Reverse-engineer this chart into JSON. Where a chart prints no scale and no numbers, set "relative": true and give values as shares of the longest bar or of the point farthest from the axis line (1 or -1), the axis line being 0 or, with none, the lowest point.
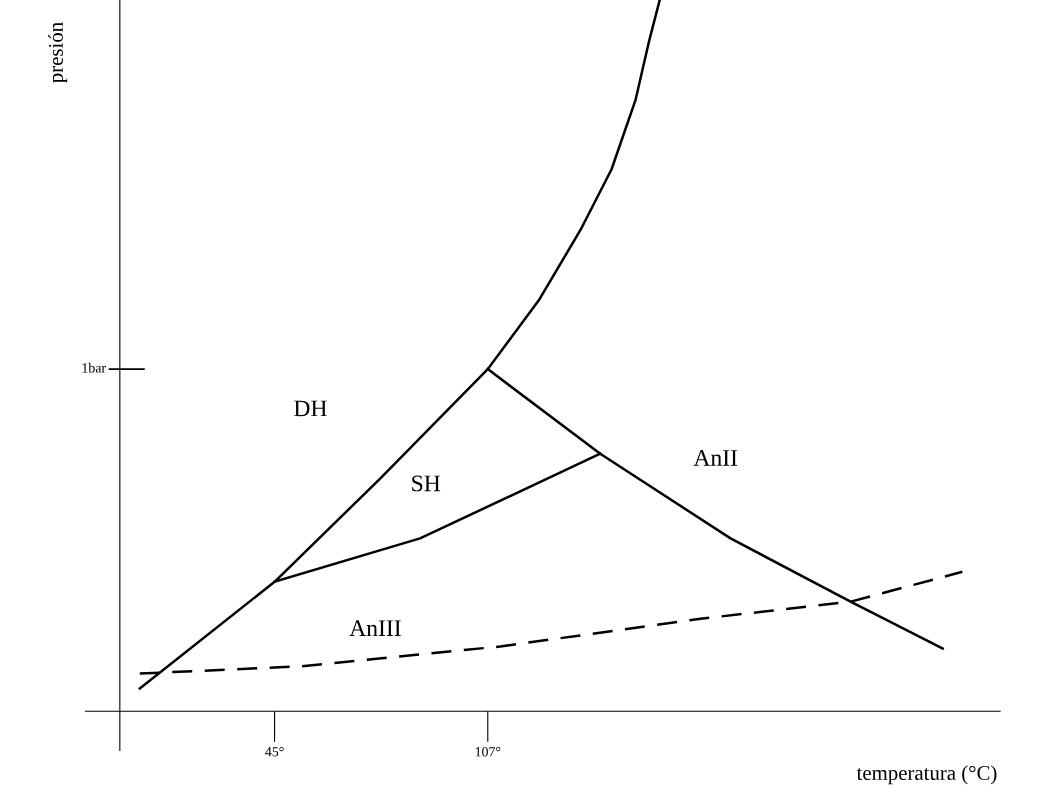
{
  "chart_data": {
    "type": "line",
    "relative": true,
    "xlabel": "temperatura (°C)",
    "ylabel": "presión",
    "xlim": [
      -10,
      256
    ],
    "xticks": [
      {
        "value": 45,
        "label": "45°"
      },
      {
        "value": 107,
        "label": "107°"
      }
    ],
    "grid": false,
    "legend": false,
    "marker": "none",
    "series": [
      {
        "color": "#000000",
        "line_style": "solid",
        "x": [
          5.8,
          45,
          75.7,
          107,
          122,
          134,
          143,
          150,
          154,
          157
        ],
        "values": [
          0.032,
          0.182,
          0.327,
          0.481,
          0.579,
          0.677,
          0.762,
          0.86,
          0.944,
          1.0
        ]
      },
      {
        "color": "#000000",
        "line_style": "solid",
        "x": [
          45,
          87.3,
          139.7
        ],
        "values": [
          0.182,
          0.243,
          0.362
        ]
      },
      {
        "color": "#000000",
        "line_style": "solid",
        "x": [
          107,
          139.7,
          177.6,
          212.5,
          239.3
        ],
        "values": [
          0.481,
          0.362,
          0.243,
          0.154,
          0.088
        ]
      },
      {
        "color": "#000000",
        "line_style": "dashed",
        "x": [
          5.8,
          52.4,
          110.6,
          168.9,
          212.5,
          245
        ],
        "values": [
          0.053,
          0.063,
          0.091,
          0.13,
          0.154,
          0.196
        ]
      }
    ],
    "ref_lines": [
      {
        "axis": "y",
        "value": 0.481,
        "label": "1bar"
      }
    ],
    "annotations": [
      "DH",
      "SH",
      "AnII",
      "AnIII"
    ]
  }
}
